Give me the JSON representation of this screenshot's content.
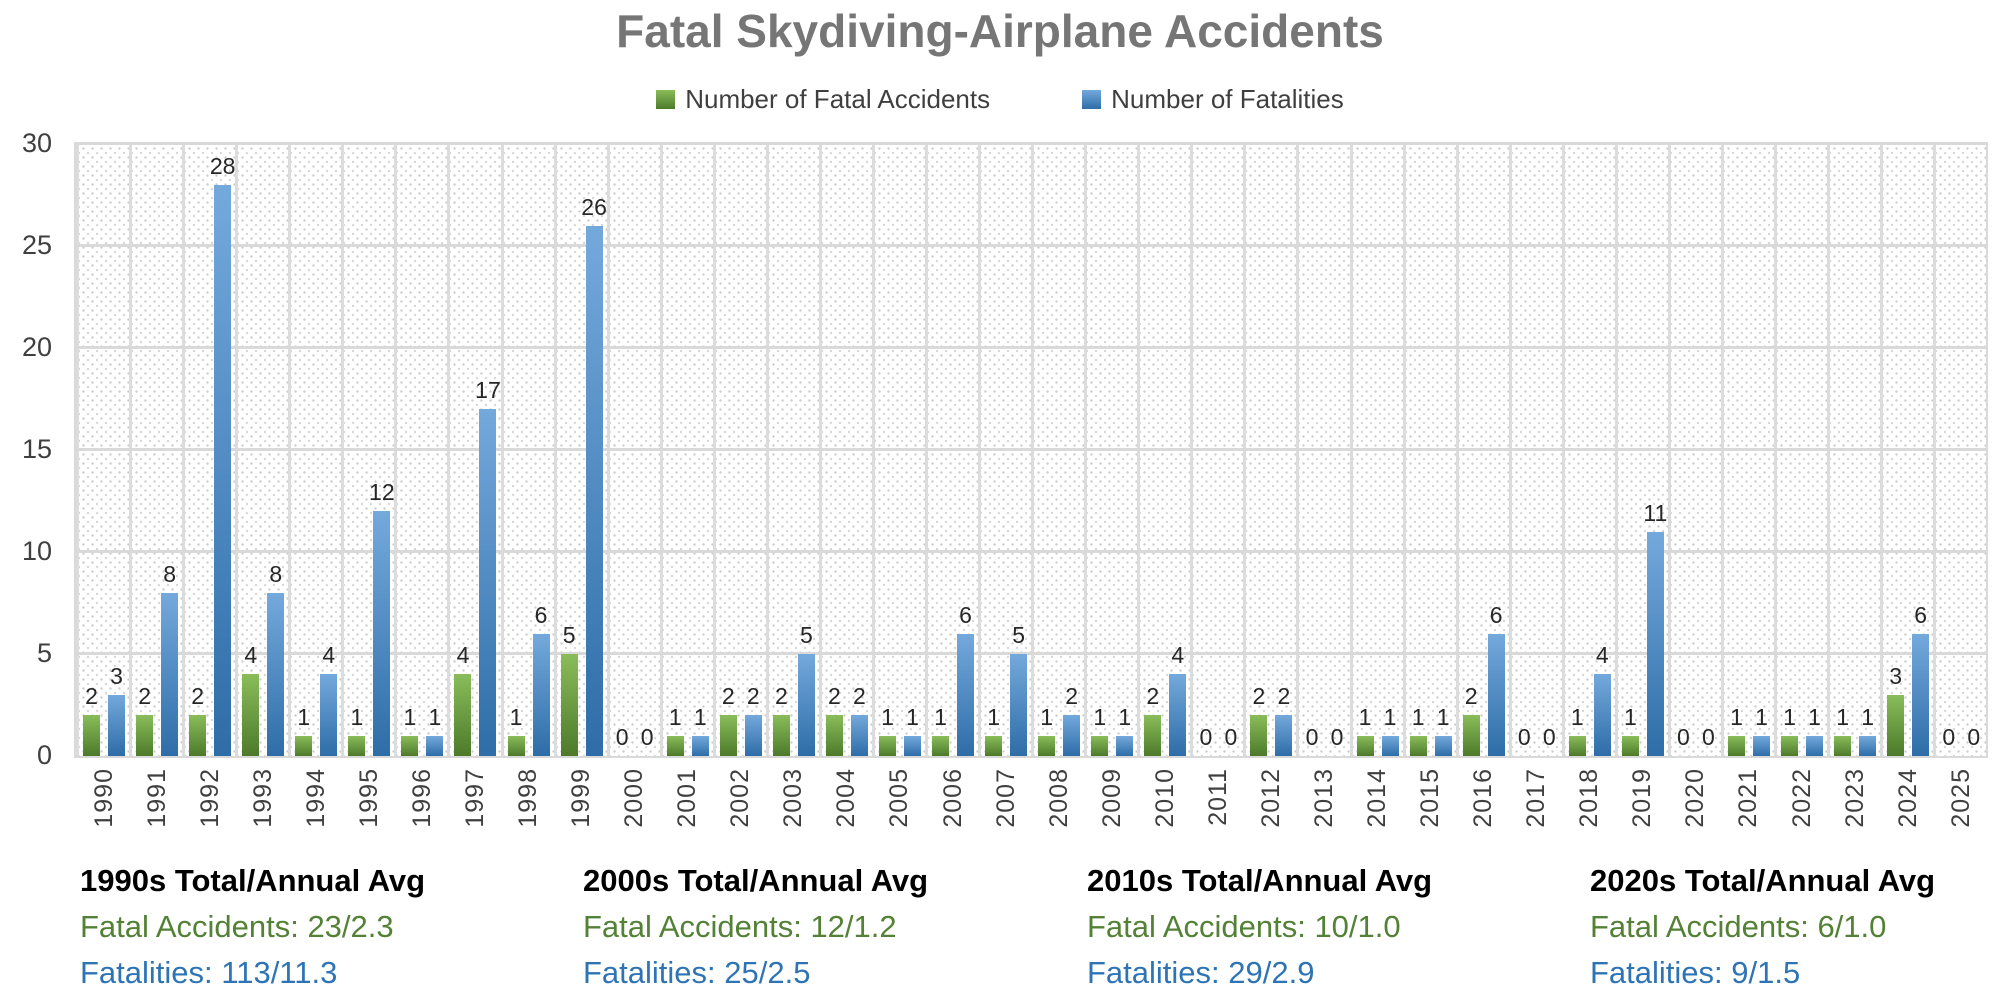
{
  "title": "Fatal Skydiving-Airplane Accidents",
  "legend": {
    "accidents": "Number of Fatal Accidents",
    "fatalities": "Number of Fatalities"
  },
  "chart_data": {
    "type": "bar",
    "title": "Fatal Skydiving-Airplane Accidents",
    "categories": [
      "1990",
      "1991",
      "1992",
      "1993",
      "1994",
      "1995",
      "1996",
      "1997",
      "1998",
      "1999",
      "2000",
      "2001",
      "2002",
      "2003",
      "2004",
      "2005",
      "2006",
      "2007",
      "2008",
      "2009",
      "2010",
      "2011",
      "2012",
      "2013",
      "2014",
      "2015",
      "2016",
      "2017",
      "2018",
      "2019",
      "2020",
      "2021",
      "2022",
      "2023",
      "2024",
      "2025"
    ],
    "series": [
      {
        "name": "Number of Fatal Accidents",
        "values": [
          2,
          2,
          2,
          4,
          1,
          1,
          1,
          4,
          1,
          5,
          0,
          1,
          2,
          2,
          2,
          1,
          1,
          1,
          1,
          1,
          2,
          0,
          2,
          0,
          1,
          1,
          2,
          0,
          1,
          1,
          0,
          1,
          1,
          1,
          3,
          0
        ]
      },
      {
        "name": "Number of Fatalities",
        "values": [
          3,
          8,
          28,
          8,
          4,
          12,
          1,
          17,
          6,
          26,
          0,
          1,
          2,
          5,
          2,
          1,
          6,
          5,
          2,
          1,
          4,
          0,
          2,
          0,
          1,
          1,
          6,
          0,
          4,
          11,
          0,
          1,
          1,
          1,
          6,
          0
        ]
      }
    ],
    "ylim": [
      0,
      30
    ],
    "yticks": [
      0,
      5,
      10,
      15,
      20,
      25,
      30
    ],
    "grid": true,
    "legend_position": "top",
    "data_labels": true
  },
  "summaries": [
    {
      "heading": "1990s Total/Annual Avg",
      "accidents_line": "Fatal Accidents: 23/2.3",
      "fatalities_line": "Fatalities: 113/11.3"
    },
    {
      "heading": "2000s Total/Annual Avg",
      "accidents_line": "Fatal Accidents: 12/1.2",
      "fatalities_line": "Fatalities: 25/2.5"
    },
    {
      "heading": "2010s Total/Annual Avg",
      "accidents_line": "Fatal Accidents: 10/1.0",
      "fatalities_line": "Fatalities: 29/2.9"
    },
    {
      "heading": "2020s Total/Annual Avg",
      "accidents_line": "Fatal Accidents: 6/1.0",
      "fatalities_line": "Fatalities: 9/1.5"
    }
  ],
  "colors": {
    "accidents_bar_top": "#8ABD5A",
    "accidents_bar_bottom": "#4D7A2A",
    "fatalities_bar_top": "#74A9DC",
    "fatalities_bar_bottom": "#2E6DA8",
    "summary_accidents_text": "#538135",
    "summary_fatalities_text": "#2E74B5",
    "title_text": "#767676",
    "gridline": "#D9D9D9",
    "axis_text": "#3F3F3F",
    "data_label_text": "#262626"
  }
}
